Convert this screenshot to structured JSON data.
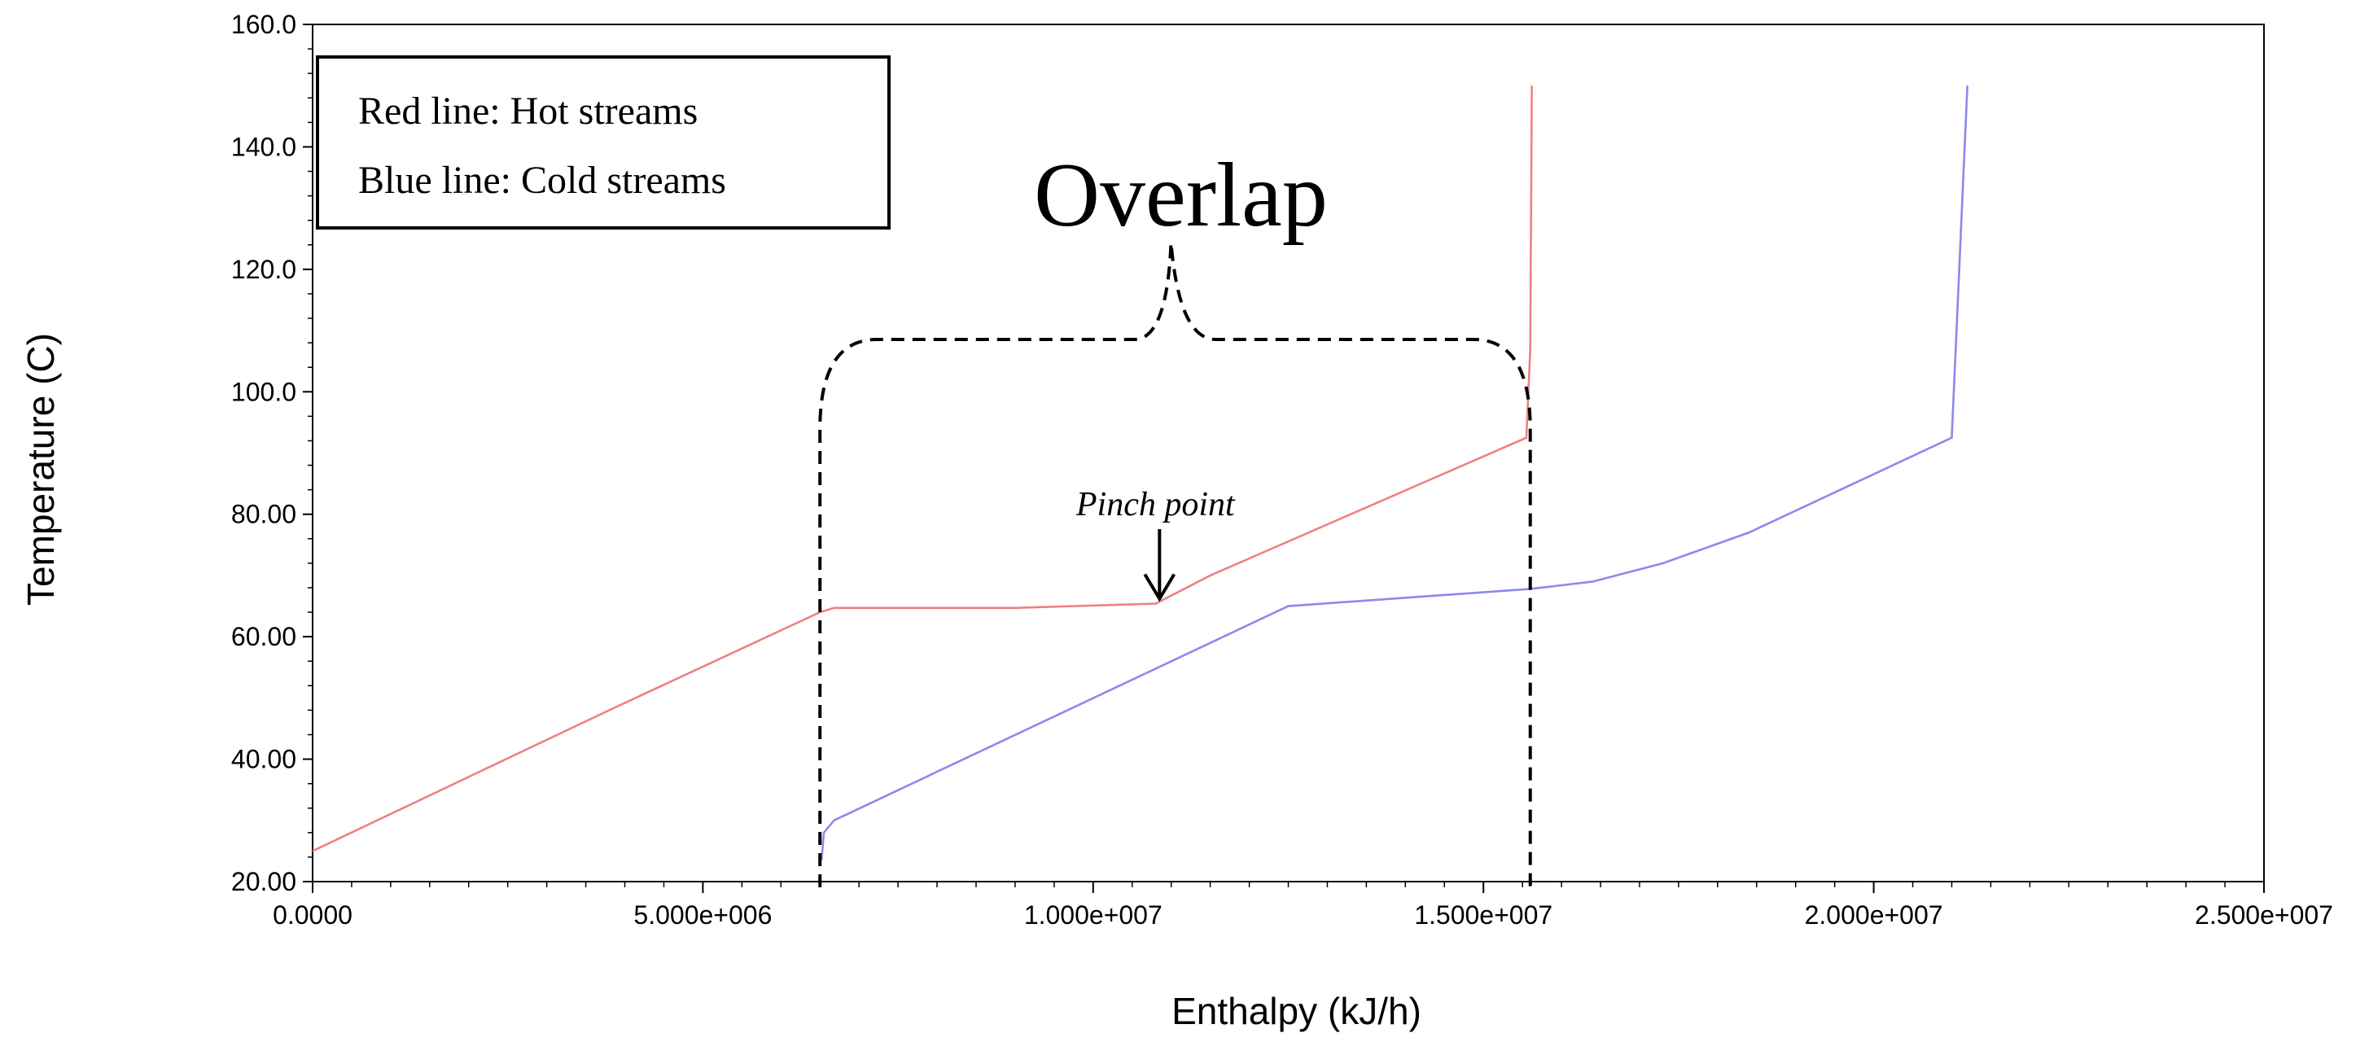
{
  "chart_data": {
    "type": "line",
    "xlabel": "Enthalpy (kJ/h)",
    "ylabel": "Temperature (C)",
    "xlim": [
      0,
      25000000
    ],
    "ylim": [
      20,
      160
    ],
    "x_ticks": [
      0,
      5000000,
      10000000,
      15000000,
      20000000,
      25000000
    ],
    "x_tick_labels": [
      "0.0000",
      "5.000e+006",
      "1.000e+007",
      "1.500e+007",
      "2.000e+007",
      "2.500e+007"
    ],
    "y_ticks": [
      20,
      40,
      60,
      80,
      100,
      120,
      140,
      160
    ],
    "y_tick_labels": [
      "20.00",
      "40.00",
      "60.00",
      "80.00",
      "100.0",
      "120.0",
      "140.0",
      "160.0"
    ],
    "grid": false,
    "series": [
      {
        "name": "Hot streams",
        "color": "#f08080",
        "points": [
          [
            0,
            25.0
          ],
          [
            3800000,
            48.0
          ],
          [
            6500000,
            64.0
          ],
          [
            6680000,
            64.7
          ],
          [
            9000000,
            64.7
          ],
          [
            10800000,
            65.4
          ],
          [
            11500000,
            70.0
          ],
          [
            15550000,
            92.5
          ],
          [
            15600000,
            107.0
          ],
          [
            15620000,
            150.0
          ]
        ]
      },
      {
        "name": "Cold streams",
        "color": "#8a8aee",
        "points": [
          [
            6520000,
            23.5
          ],
          [
            6550000,
            28.0
          ],
          [
            6680000,
            30.0
          ],
          [
            12500000,
            65.0
          ],
          [
            15600000,
            67.8
          ],
          [
            16400000,
            69.0
          ],
          [
            17300000,
            72.0
          ],
          [
            18400000,
            77.0
          ],
          [
            21000000,
            92.5
          ],
          [
            21200000,
            150.0
          ]
        ]
      }
    ],
    "legend": {
      "placement": "top-left",
      "entries": [
        "Red line: Hot streams",
        "Blue line: Cold streams"
      ]
    },
    "annotations": {
      "overlap_label": "Overlap",
      "overlap_x_range": [
        6500000,
        15600000
      ],
      "pinch_label": "Pinch point",
      "pinch_x": 10850000,
      "pinch_y": 65.4
    }
  }
}
